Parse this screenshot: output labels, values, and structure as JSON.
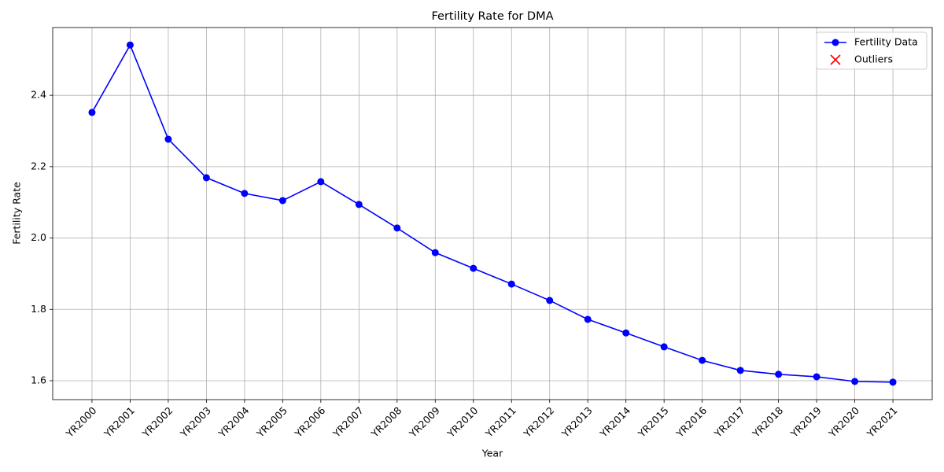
{
  "chart_data": {
    "type": "line",
    "title": "Fertility Rate for DMA",
    "x_label": "Year",
    "y_label": "Fertility Rate",
    "categories": [
      "YR2000",
      "YR2001",
      "YR2002",
      "YR2003",
      "YR2004",
      "YR2005",
      "YR2006",
      "YR2007",
      "YR2008",
      "YR2009",
      "YR2010",
      "YR2011",
      "YR2012",
      "YR2013",
      "YR2014",
      "YR2015",
      "YR2016",
      "YR2017",
      "YR2018",
      "YR2019",
      "YR2020",
      "YR2021"
    ],
    "series": [
      {
        "name": "Fertility Data",
        "color": "#0000ff",
        "marker": "o",
        "values": [
          2.352,
          2.541,
          2.277,
          2.169,
          2.125,
          2.105,
          2.158,
          2.094,
          2.028,
          1.959,
          1.915,
          1.871,
          1.825,
          1.772,
          1.734,
          1.695,
          1.657,
          1.629,
          1.618,
          1.611,
          1.598,
          1.596
        ]
      },
      {
        "name": "Outliers",
        "color": "#ff0000",
        "marker": "x",
        "values": [
          null,
          null,
          null,
          null,
          null,
          null,
          null,
          null,
          null,
          null,
          null,
          null,
          null,
          null,
          null,
          null,
          null,
          null,
          null,
          null,
          null,
          null
        ]
      }
    ],
    "ylim": [
      1.547,
      2.59
    ],
    "yticks": [
      1.6,
      1.8,
      {
        "value": 2,
        "label": "2.0"
      },
      2.2,
      2.4
    ],
    "grid": true,
    "legend": "upper right"
  }
}
